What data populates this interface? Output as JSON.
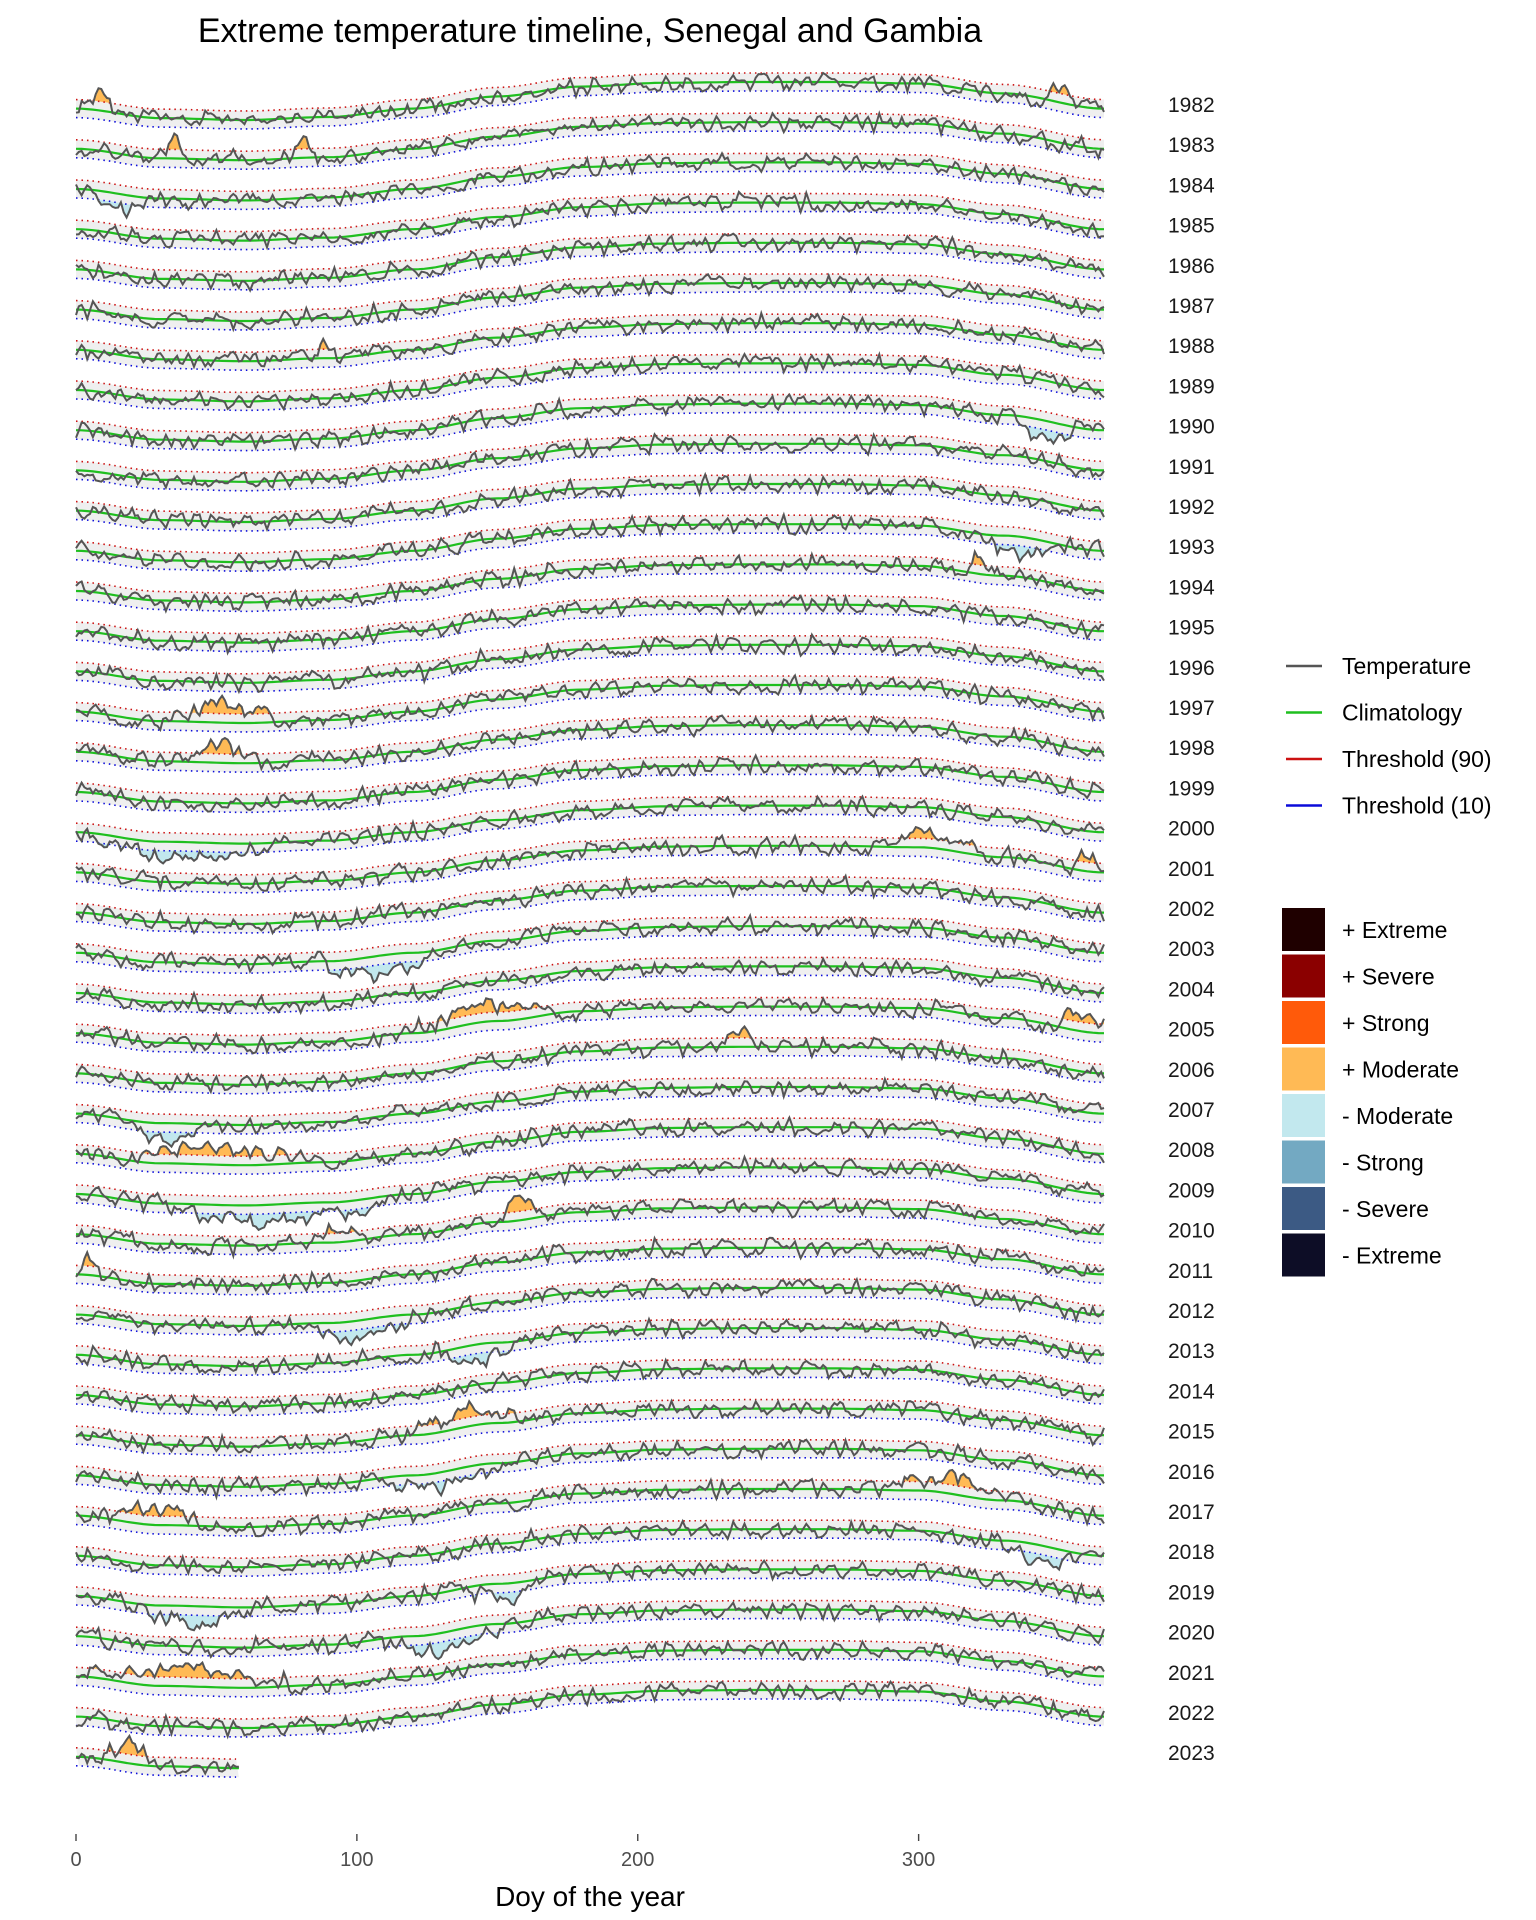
{
  "chart_data": {
    "type": "line",
    "title": "Extreme temperature timeline, Senegal and Gambia",
    "xlabel": "Doy of the year",
    "ylabel": "",
    "xlim": [
      0,
      366
    ],
    "x_ticks": [
      0,
      100,
      200,
      300
    ],
    "grid": false,
    "layout": "stacked ridgelines, one per year (1982 at top, 2023 at bottom)",
    "years": [
      1982,
      1983,
      1984,
      1985,
      1986,
      1987,
      1988,
      1989,
      1990,
      1991,
      1992,
      1993,
      1994,
      1995,
      1996,
      1997,
      1998,
      1999,
      2000,
      2001,
      2002,
      2003,
      2004,
      2005,
      2006,
      2007,
      2008,
      2009,
      2010,
      2011,
      2012,
      2013,
      2014,
      2015,
      2016,
      2017,
      2018,
      2019,
      2020,
      2021,
      2022,
      2023
    ],
    "last_year_partial_end_doy": 58,
    "climatology_shape": {
      "doy": [
        0,
        30,
        60,
        90,
        120,
        150,
        180,
        210,
        240,
        270,
        300,
        330,
        366
      ],
      "value": [
        0.3,
        0.05,
        0.0,
        0.08,
        0.3,
        0.62,
        0.88,
        0.98,
        1.0,
        1.0,
        0.96,
        0.7,
        0.3
      ]
    },
    "series": [
      {
        "name": "Temperature",
        "color": "#555555",
        "style": "solid"
      },
      {
        "name": "Climatology",
        "color": "#1fbf1f",
        "style": "solid"
      },
      {
        "name": "Threshold (90)",
        "color": "#cc1111",
        "style": "dotted"
      },
      {
        "name": "Threshold (10)",
        "color": "#0b0bd9",
        "style": "dotted"
      }
    ],
    "categories_legend": [
      {
        "label": "+ Extreme",
        "color": "#1f0000"
      },
      {
        "label": "+ Severe",
        "color": "#8b0000"
      },
      {
        "label": "+ Strong",
        "color": "#ff5a0a"
      },
      {
        "label": "+ Moderate",
        "color": "#ffba55"
      },
      {
        "label": "- Moderate",
        "color": "#c2e8ee"
      },
      {
        "label": "- Strong",
        "color": "#73a9c2"
      },
      {
        "label": "- Severe",
        "color": "#3c5a84"
      },
      {
        "label": "- Extreme",
        "color": "#0d0d26"
      }
    ],
    "legend_position": "right",
    "anomaly_events": [
      {
        "year": 1982,
        "kind": "+",
        "start": 5,
        "end": 12
      },
      {
        "year": 1982,
        "kind": "+",
        "start": 345,
        "end": 355
      },
      {
        "year": 1983,
        "kind": "+",
        "start": 30,
        "end": 40
      },
      {
        "year": 1983,
        "kind": "+",
        "start": 78,
        "end": 85
      },
      {
        "year": 1984,
        "kind": "-",
        "start": 8,
        "end": 25
      },
      {
        "year": 1988,
        "kind": "+",
        "start": 85,
        "end": 92
      },
      {
        "year": 1990,
        "kind": "-",
        "start": 335,
        "end": 355
      },
      {
        "year": 1993,
        "kind": "-",
        "start": 325,
        "end": 350
      },
      {
        "year": 1994,
        "kind": "+",
        "start": 318,
        "end": 326
      },
      {
        "year": 1997,
        "kind": "+",
        "start": 35,
        "end": 70
      },
      {
        "year": 1998,
        "kind": "+",
        "start": 35,
        "end": 65
      },
      {
        "year": 2000,
        "kind": "-",
        "start": 5,
        "end": 70
      },
      {
        "year": 2001,
        "kind": "+",
        "start": 285,
        "end": 320
      },
      {
        "year": 2001,
        "kind": "+",
        "start": 355,
        "end": 366
      },
      {
        "year": 2003,
        "kind": "-",
        "start": 90,
        "end": 130
      },
      {
        "year": 2005,
        "kind": "+",
        "start": 120,
        "end": 170
      },
      {
        "year": 2005,
        "kind": "+",
        "start": 350,
        "end": 366
      },
      {
        "year": 2006,
        "kind": "+",
        "start": 232,
        "end": 242
      },
      {
        "year": 2007,
        "kind": "-",
        "start": 20,
        "end": 45
      },
      {
        "year": 2008,
        "kind": "+",
        "start": 20,
        "end": 85
      },
      {
        "year": 2009,
        "kind": "-",
        "start": 30,
        "end": 110
      },
      {
        "year": 2010,
        "kind": "+",
        "start": 150,
        "end": 165
      },
      {
        "year": 2010,
        "kind": "+",
        "start": 85,
        "end": 100
      },
      {
        "year": 2011,
        "kind": "+",
        "start": 0,
        "end": 8
      },
      {
        "year": 2012,
        "kind": "-",
        "start": 80,
        "end": 120
      },
      {
        "year": 2013,
        "kind": "-",
        "start": 130,
        "end": 155
      },
      {
        "year": 2015,
        "kind": "+",
        "start": 120,
        "end": 160
      },
      {
        "year": 2016,
        "kind": "-",
        "start": 110,
        "end": 150
      },
      {
        "year": 2017,
        "kind": "+",
        "start": 10,
        "end": 45
      },
      {
        "year": 2017,
        "kind": "+",
        "start": 295,
        "end": 330
      },
      {
        "year": 2018,
        "kind": "-",
        "start": 330,
        "end": 355
      },
      {
        "year": 2019,
        "kind": "-",
        "start": 20,
        "end": 60
      },
      {
        "year": 2019,
        "kind": "-",
        "start": 140,
        "end": 165
      },
      {
        "year": 2020,
        "kind": "-",
        "start": 110,
        "end": 150
      },
      {
        "year": 2021,
        "kind": "+",
        "start": 5,
        "end": 75
      },
      {
        "year": 2023,
        "kind": "+",
        "start": 10,
        "end": 28
      }
    ]
  }
}
